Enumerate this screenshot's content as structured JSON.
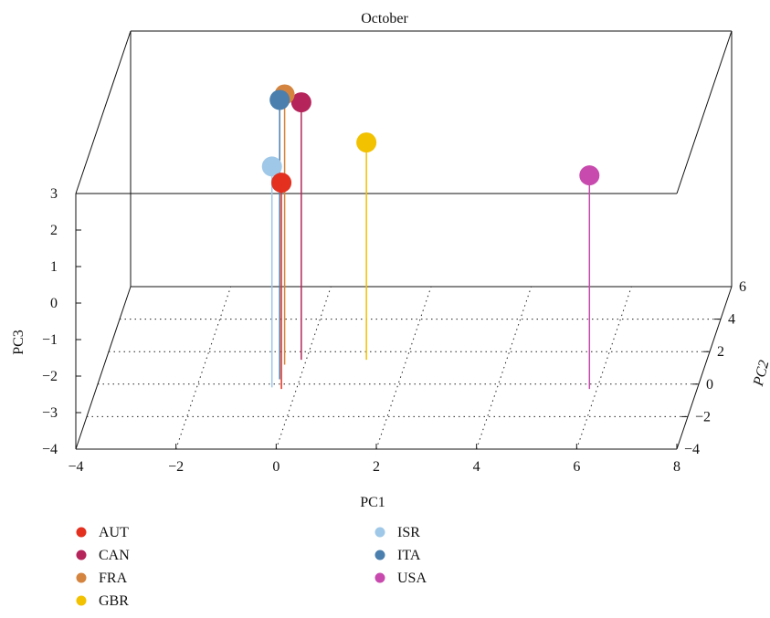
{
  "chart_data": {
    "type": "scatter",
    "subtype": "3d-stem",
    "title": "October",
    "xlabel": "PC1",
    "ylabel": "PC2",
    "zlabel": "PC3",
    "xlim": [
      -4,
      8
    ],
    "ylim": [
      -4,
      6
    ],
    "zlim": [
      -4,
      3
    ],
    "xticks": [
      "−4",
      "−2",
      "0",
      "2",
      "4",
      "6",
      "8"
    ],
    "yticks": [
      "−4",
      "−2",
      "0",
      "2",
      "4",
      "6"
    ],
    "zticks": [
      "−4",
      "−3",
      "−2",
      "−1",
      "0",
      "1",
      "2",
      "3"
    ],
    "legend_position": "bottom",
    "series": [
      {
        "name": "AUT",
        "color": "#e3301f",
        "x": -0.3,
        "y": -0.3,
        "z": 1.65
      },
      {
        "name": "CAN",
        "color": "#b5245a",
        "x": -0.1,
        "y": 1.5,
        "z": 3.05
      },
      {
        "name": "FRA",
        "color": "#d4843f",
        "x": -0.4,
        "y": 1.2,
        "z": 3.4
      },
      {
        "name": "GBR",
        "color": "#f2c100",
        "x": 1.2,
        "y": 1.5,
        "z": 1.95
      },
      {
        "name": "ISR",
        "color": "#9fc8e8",
        "x": -0.5,
        "y": -0.2,
        "z": 2.05
      },
      {
        "name": "ITA",
        "color": "#4a7fae",
        "x": -0.4,
        "y": 0.3,
        "z": 3.65
      },
      {
        "name": "USA",
        "color": "#c84aae",
        "x": 5.85,
        "y": -0.3,
        "z": 1.85
      }
    ]
  }
}
